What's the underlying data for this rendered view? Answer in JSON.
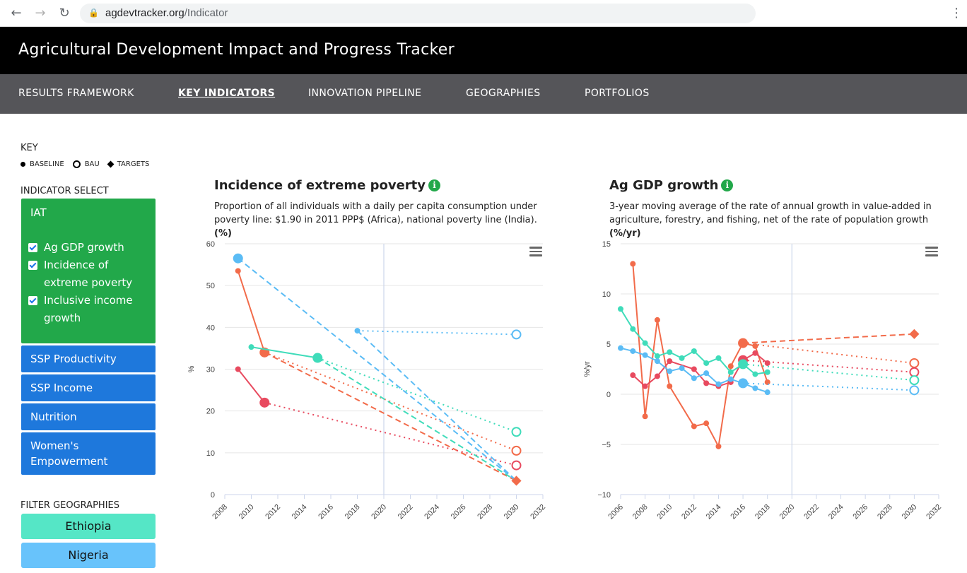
{
  "browser": {
    "url_host": "agdevtracker.org",
    "url_path": "/Indicator"
  },
  "site": {
    "title": "Agricultural Development Impact and Progress Tracker",
    "nav": [
      "RESULTS FRAMEWORK",
      "KEY INDICATORS",
      "INNOVATION PIPELINE",
      "GEOGRAPHIES",
      "PORTFOLIOS"
    ],
    "active_nav": "KEY INDICATORS"
  },
  "key": {
    "title": "KEY",
    "baseline": "BASELINE",
    "bau": "BAU",
    "targets": "TARGETS"
  },
  "indicator_select": {
    "label": "INDICATOR SELECT",
    "group_title": "IAT",
    "items": [
      {
        "lines": [
          "Ag GDP growth"
        ],
        "checked": true
      },
      {
        "lines": [
          "Incidence of",
          "extreme poverty"
        ],
        "checked": true
      },
      {
        "lines": [
          "Inclusive income",
          "growth"
        ],
        "checked": true
      }
    ],
    "groups": [
      {
        "lines": [
          "SSP Productivity"
        ]
      },
      {
        "lines": [
          "SSP Income"
        ]
      },
      {
        "lines": [
          "Nutrition"
        ]
      },
      {
        "lines": [
          "Women's",
          "Empowerment"
        ]
      }
    ],
    "colors": {
      "iat": "#22a84a",
      "group": "#1e78dc"
    }
  },
  "filter": {
    "label": "FILTER GEOGRAPHIES",
    "geos": [
      {
        "name": "Ethiopia",
        "color": "#55e6c6"
      },
      {
        "name": "Nigeria",
        "color": "#68c3fb"
      }
    ]
  },
  "chart_data": [
    {
      "type": "line",
      "title": "Incidence of extreme poverty",
      "desc_text": "Proportion of all individuals with a daily per capita consumption under poverty line: $1.90 in 2011 PPP$ (Africa), national poverty line (India).",
      "desc_unit": "(%)",
      "ylabel": "%",
      "xlim": [
        2008,
        2032
      ],
      "ylim": [
        0,
        60
      ],
      "yticks": [
        0,
        10,
        20,
        30,
        40,
        50,
        60
      ],
      "xticks": [
        2008,
        2010,
        2012,
        2014,
        2016,
        2018,
        2020,
        2022,
        2024,
        2026,
        2028,
        2030,
        2032
      ],
      "divider_x": 2020,
      "series": [
        {
          "color": "#f26b4a",
          "points": [
            [
              2009,
              53.5
            ],
            [
              2011,
              34
            ]
          ],
          "baseline": [
            2011,
            34
          ],
          "bau": [
            2030,
            10.5
          ],
          "target": [
            2030,
            3.3
          ]
        },
        {
          "color": "#e84a5f",
          "points": [
            [
              2009,
              30
            ],
            [
              2011,
              22
            ]
          ],
          "baseline": [
            2011,
            22
          ],
          "bau": [
            2030,
            7
          ]
        },
        {
          "color": "#3fdcba",
          "points": [
            [
              2010,
              35.3
            ],
            [
              2015,
              32.7
            ]
          ],
          "baseline": [
            2015,
            32.7
          ],
          "bau": [
            2030,
            15
          ],
          "target": [
            2030,
            3.3
          ]
        },
        {
          "color": "#5bbcf5",
          "points": [
            [
              2009,
              56.5
            ]
          ],
          "baseline": [
            2009,
            56.5
          ],
          "extra": [
            [
              2018,
              39.2
            ]
          ],
          "bau": [
            2030,
            38.3
          ],
          "target": [
            2030,
            3.3
          ]
        }
      ]
    },
    {
      "type": "line",
      "title": "Ag GDP growth",
      "desc_text": "3-year moving average of the rate of annual growth in value-added in agriculture, forestry, and fishing, net of the rate of population growth",
      "desc_unit": "(%/yr)",
      "ylabel": "%/yr",
      "xlim": [
        2006,
        2032
      ],
      "ylim": [
        -10,
        15
      ],
      "yticks": [
        -10,
        -5,
        0,
        5,
        10,
        15
      ],
      "ytick_labels": [
        "−10",
        "−5",
        "0",
        "5",
        "10",
        "15"
      ],
      "xticks": [
        2006,
        2008,
        2010,
        2012,
        2014,
        2016,
        2018,
        2020,
        2022,
        2024,
        2026,
        2028,
        2030,
        2032
      ],
      "divider_x": 2020,
      "series": [
        {
          "color": "#f26b4a",
          "points": [
            [
              2007,
              13
            ],
            [
              2008,
              -2.2
            ],
            [
              2009,
              7.4
            ],
            [
              2010,
              0.8
            ],
            [
              2012,
              -3.2
            ],
            [
              2013,
              -2.9
            ],
            [
              2014,
              -5.2
            ],
            [
              2015,
              2.8
            ],
            [
              2016,
              5.1
            ],
            [
              2017,
              4.8
            ],
            [
              2018,
              1.2
            ]
          ],
          "baseline": [
            2016,
            5.1
          ],
          "bau": [
            2030,
            3.1
          ],
          "target": [
            2030,
            6
          ]
        },
        {
          "color": "#e84a5f",
          "points": [
            [
              2007,
              1.9
            ],
            [
              2008,
              0.8
            ],
            [
              2009,
              1.8
            ],
            [
              2010,
              3.3
            ],
            [
              2012,
              2.5
            ],
            [
              2013,
              1.1
            ],
            [
              2014,
              0.8
            ],
            [
              2015,
              1.2
            ],
            [
              2016,
              3.4
            ],
            [
              2017,
              4.1
            ],
            [
              2018,
              3.1
            ]
          ],
          "baseline": [
            2016,
            3.4
          ],
          "bau": [
            2030,
            2.2
          ]
        },
        {
          "color": "#3fdcba",
          "points": [
            [
              2006,
              8.5
            ],
            [
              2007,
              6.5
            ],
            [
              2008,
              5.1
            ],
            [
              2009,
              3.8
            ],
            [
              2010,
              4.2
            ],
            [
              2011,
              3.6
            ],
            [
              2012,
              4.3
            ],
            [
              2013,
              3.1
            ],
            [
              2014,
              3.6
            ],
            [
              2015,
              2.2
            ],
            [
              2016,
              3
            ],
            [
              2017,
              2
            ],
            [
              2018,
              2.2
            ]
          ],
          "baseline": [
            2016,
            3
          ],
          "bau": [
            2030,
            1.4
          ]
        },
        {
          "color": "#5bbcf5",
          "points": [
            [
              2006,
              4.6
            ],
            [
              2007,
              4.3
            ],
            [
              2008,
              3.9
            ],
            [
              2009,
              3.3
            ],
            [
              2010,
              2.3
            ],
            [
              2011,
              2.6
            ],
            [
              2012,
              1.6
            ],
            [
              2013,
              2.1
            ],
            [
              2014,
              1
            ],
            [
              2015,
              1.5
            ],
            [
              2016,
              1.1
            ],
            [
              2017,
              0.6
            ],
            [
              2018,
              0.2
            ]
          ],
          "baseline": [
            2016,
            1.1
          ],
          "bau": [
            2030,
            0.4
          ]
        }
      ]
    }
  ]
}
